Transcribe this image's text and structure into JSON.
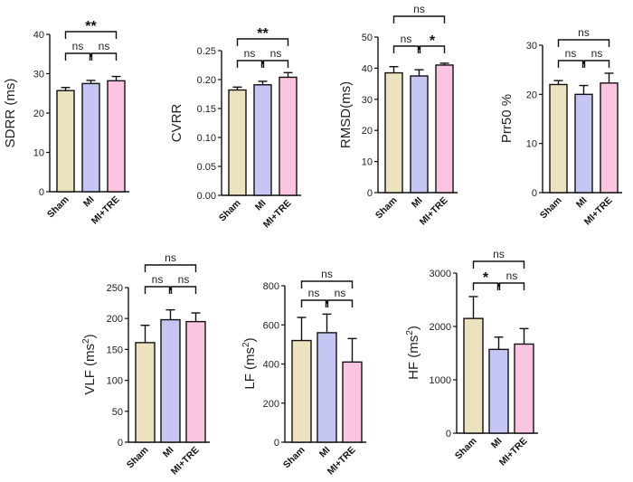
{
  "colors": {
    "Sham": "#ece2c0",
    "MI": "#c6c6f4",
    "MI+TRE": "#fbc4e0",
    "axis": "#111111"
  },
  "chart_data": [
    {
      "id": "sdrr",
      "type": "bar",
      "ylabel": "SDRR (ms)",
      "categories": [
        "Sham",
        "MI",
        "MI+TRE"
      ],
      "values": [
        25.7,
        27.5,
        28.2
      ],
      "errors": [
        0.8,
        0.8,
        1.1
      ],
      "ylim": [
        0,
        40
      ],
      "ticks": [
        "0",
        "10",
        "20",
        "30",
        "40"
      ],
      "comparisons": [
        {
          "from": 0,
          "to": 2,
          "label": "**"
        },
        {
          "from": 0,
          "to": 1,
          "label": "ns"
        },
        {
          "from": 1,
          "to": 2,
          "label": "ns"
        }
      ]
    },
    {
      "id": "cvrr",
      "type": "bar",
      "ylabel": "CVRR",
      "categories": [
        "Sham",
        "MI",
        "MI+TRE"
      ],
      "values": [
        0.182,
        0.191,
        0.204
      ],
      "errors": [
        0.005,
        0.006,
        0.008
      ],
      "ylim": [
        0,
        0.25
      ],
      "ticks": [
        "0.00",
        "0.05",
        "0.10",
        "0.15",
        "0.20",
        "0.25"
      ],
      "comparisons": [
        {
          "from": 0,
          "to": 2,
          "label": "**"
        },
        {
          "from": 0,
          "to": 1,
          "label": "ns"
        },
        {
          "from": 1,
          "to": 2,
          "label": "ns"
        }
      ]
    },
    {
      "id": "rmsd",
      "type": "bar",
      "ylabel": "RMSD(ms)",
      "categories": [
        "Sham",
        "MI",
        "MI+TRE"
      ],
      "values": [
        38.5,
        37.5,
        41.0
      ],
      "errors": [
        2.0,
        2.0,
        0.6
      ],
      "ylim": [
        0,
        50
      ],
      "ticks": [
        "0",
        "10",
        "20",
        "30",
        "40",
        "50"
      ],
      "comparisons": [
        {
          "from": 0,
          "to": 2,
          "label": "ns"
        },
        {
          "from": 0,
          "to": 1,
          "label": "ns"
        },
        {
          "from": 1,
          "to": 2,
          "label": "*"
        }
      ]
    },
    {
      "id": "prr50",
      "type": "bar",
      "ylabel": "Prr50 %",
      "categories": [
        "Sham",
        "MI",
        "MI+TRE"
      ],
      "values": [
        22.0,
        20.0,
        22.3
      ],
      "errors": [
        0.8,
        1.8,
        2.0
      ],
      "ylim": [
        0,
        30
      ],
      "ticks": [
        "0",
        "10",
        "20",
        "30"
      ],
      "comparisons": [
        {
          "from": 0,
          "to": 2,
          "label": "ns"
        },
        {
          "from": 0,
          "to": 1,
          "label": "ns"
        },
        {
          "from": 1,
          "to": 2,
          "label": "ns"
        }
      ]
    },
    {
      "id": "vlf",
      "type": "bar",
      "ylabel": "VLF (ms",
      "ylabel_sup": "2",
      "ylabel_end": ")",
      "categories": [
        "Sham",
        "MI",
        "MI+TRE"
      ],
      "values": [
        161,
        198,
        195
      ],
      "errors": [
        28,
        16,
        14
      ],
      "ylim": [
        0,
        250
      ],
      "ticks": [
        "0",
        "50",
        "100",
        "150",
        "200",
        "250"
      ],
      "comparisons": [
        {
          "from": 0,
          "to": 2,
          "label": "ns"
        },
        {
          "from": 0,
          "to": 1,
          "label": "ns"
        },
        {
          "from": 1,
          "to": 2,
          "label": "ns"
        }
      ]
    },
    {
      "id": "lf",
      "type": "bar",
      "ylabel": "LF (ms",
      "ylabel_sup": "2",
      "ylabel_end": ")",
      "categories": [
        "Sham",
        "MI",
        "MI+TRE"
      ],
      "values": [
        520,
        560,
        410
      ],
      "errors": [
        118,
        95,
        120
      ],
      "ylim": [
        0,
        800
      ],
      "ticks": [
        "0",
        "200",
        "400",
        "600",
        "800"
      ],
      "comparisons": [
        {
          "from": 0,
          "to": 2,
          "label": "ns"
        },
        {
          "from": 0,
          "to": 1,
          "label": "ns"
        },
        {
          "from": 1,
          "to": 2,
          "label": "ns"
        }
      ]
    },
    {
      "id": "hf",
      "type": "bar",
      "ylabel": "HF (ms",
      "ylabel_sup": "2",
      "ylabel_end": ")",
      "categories": [
        "Sham",
        "MI",
        "MI+TRE"
      ],
      "values": [
        2150,
        1570,
        1670
      ],
      "errors": [
        410,
        230,
        290
      ],
      "ylim": [
        0,
        3000
      ],
      "ticks": [
        "0",
        "1000",
        "2000",
        "3000"
      ],
      "comparisons": [
        {
          "from": 0,
          "to": 2,
          "label": "ns"
        },
        {
          "from": 0,
          "to": 1,
          "label": "*"
        },
        {
          "from": 1,
          "to": 2,
          "label": "ns"
        }
      ]
    }
  ]
}
